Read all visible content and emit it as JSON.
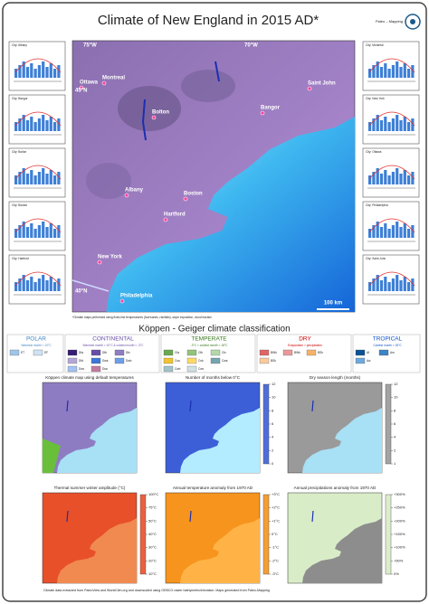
{
  "header": {
    "title": "Climate of New England in 2015 AD*",
    "logo": "Paleo – Mapping"
  },
  "stations": {
    "left": [
      "City: Albany",
      "City: Bangor",
      "City: Bolton",
      "City: Boston",
      "City: Hartford"
    ],
    "right": [
      "City: Montreal",
      "City: New York",
      "City: Ottawa",
      "City: Philadelphia",
      "City: Saint John"
    ]
  },
  "main_map": {
    "cities": [
      "Ottawa",
      "Montreal",
      "Bolton",
      "Bangor",
      "Saint John",
      "Albany",
      "Boston",
      "Hartford",
      "New York",
      "Philadelphia"
    ],
    "graticule": [
      "75°W",
      "70°W",
      "45°N",
      "40°N"
    ],
    "scale": "100 km",
    "footnote": "*Climate maps performed using fixed-line temperatures (hurricanes, rainfalls), slope exposition, cloud fraction"
  },
  "classification": {
    "title": "Köppen - Geiger climate classification",
    "groups": [
      {
        "name": "POLAR",
        "color": "#3d85c6",
        "rule": "Warmest month < 10°C",
        "codes": [
          "ET",
          "EF"
        ],
        "swatches": [
          "#9fc5e8",
          "#cfe2f3"
        ]
      },
      {
        "name": "CONTINENTAL",
        "color": "#674ea7",
        "rule": "Warmest month > 10°C & coldest month < -3°C",
        "codes": [
          "Dfa",
          "Dfb",
          "Dfc",
          "Dfd",
          "Dwa",
          "Dwb",
          "Dwc",
          "Dsa"
        ],
        "swatches": [
          "#351c75",
          "#674ea7",
          "#8e7cc3",
          "#b4a7d6",
          "#3c78d8",
          "#6d9eeb",
          "#a4c2f4",
          "#c27ba0"
        ]
      },
      {
        "name": "TEMPERATE",
        "color": "#38761d",
        "rule": "-3°C < coldest month < 18°C",
        "codes": [
          "Cfa",
          "Cfb",
          "Cfc",
          "Csa",
          "Csb",
          "Cwa",
          "Cwb",
          "Cwc"
        ],
        "swatches": [
          "#6aa84f",
          "#93c47d",
          "#b6d7a8",
          "#f1c232",
          "#ffd966",
          "#76a5af",
          "#a2c4c9",
          "#d0e0e3"
        ]
      },
      {
        "name": "DRY",
        "color": "#cc0000",
        "rule": "Evaporation > precipitation",
        "codes": [
          "BWh",
          "BWk",
          "BSh",
          "BSk"
        ],
        "swatches": [
          "#e06666",
          "#ea9999",
          "#f6b26b",
          "#f9cb9c"
        ]
      },
      {
        "name": "TROPICAL",
        "color": "#1155cc",
        "rule": "Coldest month > 18°C",
        "codes": [
          "Af",
          "Am",
          "Aw"
        ],
        "swatches": [
          "#0b5394",
          "#3d85c6",
          "#6fa8dc"
        ]
      }
    ]
  },
  "panels": [
    {
      "title": "Köppen climate map using default temperatures",
      "land_color": "#8e7cc3",
      "sea_color": "#a8e0f5"
    },
    {
      "title": "Number of months below 0°C",
      "land_color": "#3c5fd8",
      "sea_color": "#b3ecff",
      "scale": [
        "12",
        "10",
        "8",
        "6",
        "4",
        "2",
        "0"
      ]
    },
    {
      "title": "Dry season length (months)",
      "land_color": "#9a9a9a",
      "sea_color": "#a8e0f5",
      "scale": [
        "12",
        "10",
        "8",
        "6",
        "4",
        "2",
        "1"
      ]
    },
    {
      "title": "Thermal summer winter amplitude (°C)",
      "land_color": "#e8502a",
      "sea_color": "#f08a50",
      "scale": [
        "100°C",
        "75°C",
        "50°C",
        "40°C",
        "30°C",
        "20°C",
        "10°C"
      ]
    },
    {
      "title": "Annual temperature anomaly from 1970 AD",
      "land_color": "#f7941d",
      "sea_color": "#ffb347",
      "scale": [
        "+3°C",
        "+2°C",
        "+1°C",
        "0°C",
        "-1°C",
        "-2°C",
        "-3°C"
      ]
    },
    {
      "title": "Annual precipitations anomaly from 1970 AD",
      "land_color": "#d9ecc8",
      "sea_color": "#8d8d8d",
      "scale": [
        "+300%",
        "+250%",
        "+200%",
        "+150%",
        "+100%",
        "+50%",
        "0%"
      ]
    }
  ],
  "footer": "Climate data extracted from PaleoView and WorldClim.org and downscaled using GEBCO raster bathymetric/elevation. Maps generated from Paleo-Mapping."
}
